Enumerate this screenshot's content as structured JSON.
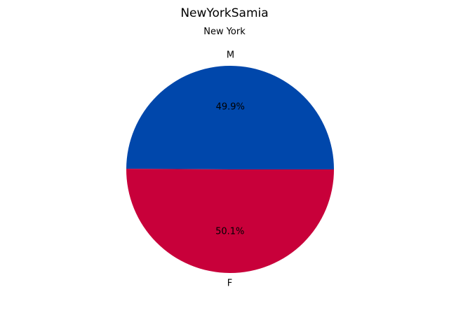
{
  "chart_data": {
    "type": "pie",
    "title": "NewYorkSamia",
    "subtitle": "New York",
    "categories": [
      "M",
      "F"
    ],
    "values": [
      49.9,
      50.1
    ],
    "percent_labels": [
      "49.9%",
      "50.1%"
    ],
    "colors": [
      "#0047AB",
      "#C8003A"
    ],
    "legend": "none"
  }
}
